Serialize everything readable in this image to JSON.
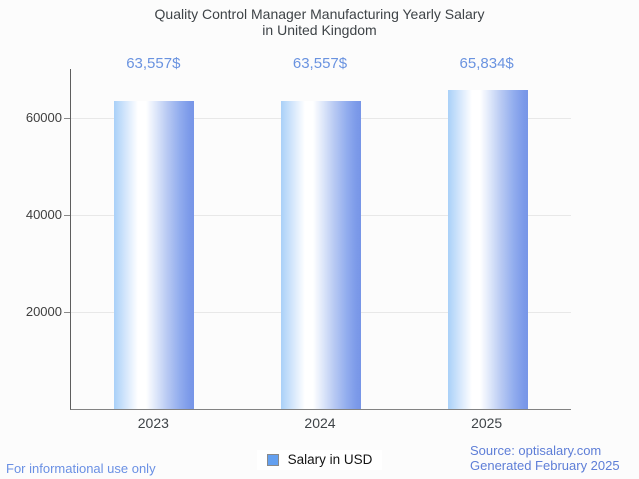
{
  "title": {
    "line1": "Quality Control Manager Manufacturing Yearly Salary",
    "line2": "in United Kingdom"
  },
  "chart_data": {
    "type": "bar",
    "title": "Quality Control Manager Manufacturing Yearly Salary in United Kingdom",
    "categories": [
      "2023",
      "2024",
      "2025"
    ],
    "series": [
      {
        "name": "Salary in USD",
        "values": [
          63557,
          63557,
          65834
        ]
      }
    ],
    "value_labels": [
      "63,557$",
      "63,557$",
      "65,834$"
    ],
    "xlabel": "",
    "ylabel": "",
    "ylim": [
      0,
      70000
    ],
    "yticks": [
      20000,
      40000,
      60000
    ],
    "ytick_labels": [
      "20000",
      "40000",
      "60000"
    ],
    "grid": true,
    "legend_position": "bottom",
    "bar_color": "#6d9eeb",
    "bar_gradient_edges": [
      "#a9d0f8",
      "#ffffff",
      "#7795e7"
    ],
    "value_label_color": "#6a93e0"
  },
  "legend": {
    "label": "Salary in USD",
    "swatch_color": "#64a0f0"
  },
  "footer": {
    "disclaimer": "For informational use only",
    "source_line1": "Source: optisalary.com",
    "source_line2": "Generated February 2025"
  }
}
